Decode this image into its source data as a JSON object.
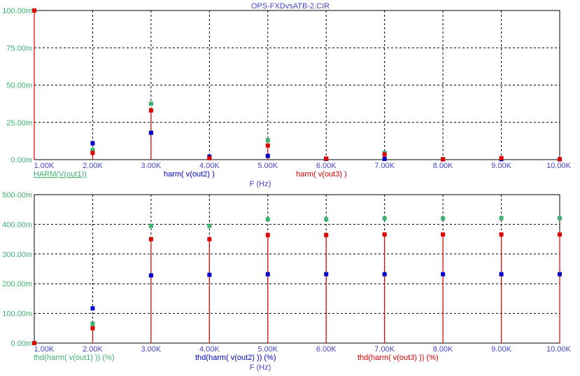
{
  "window": {
    "title": "OPS-FXDvsATB-2.CIR"
  },
  "chart_data": [
    {
      "type": "scatter",
      "x": [
        1,
        2,
        3,
        4,
        5,
        6,
        7,
        8,
        9,
        10
      ],
      "xlabel": "F (Hz)",
      "xticks": [
        "1.00K",
        "2.00K",
        "3.00K",
        "4.00K",
        "5.00K",
        "6.00K",
        "7.00K",
        "8.00K",
        "9.00K",
        "10.00K"
      ],
      "xlim": [
        1,
        10
      ],
      "ylim": [
        0,
        100
      ],
      "yticks": [
        "0.00m",
        "25.00m",
        "50.00m",
        "75.00m",
        "100.00m"
      ],
      "grid": true,
      "series": [
        {
          "name": "HARM(V(out1))",
          "color": "#3cb371",
          "stems": false,
          "values": [
            100,
            6.5,
            37.5,
            1.5,
            13,
            0.5,
            4.5,
            0.3,
            1,
            0.3
          ]
        },
        {
          "name": "harm(  v(out2) )",
          "color": "#0000cc",
          "stems": false,
          "values": [
            100,
            11,
            18,
            2,
            2.5,
            0.5,
            0.5,
            0.2,
            0.3,
            0.2
          ]
        },
        {
          "name": "harm(  v(out3) )",
          "color": "#dd0000",
          "stems": true,
          "values": [
            100,
            4.5,
            33,
            1,
            9.5,
            0.7,
            3.5,
            0.3,
            1,
            0.3
          ]
        }
      ]
    },
    {
      "type": "scatter",
      "x": [
        1,
        2,
        3,
        4,
        5,
        6,
        7,
        8,
        9,
        10
      ],
      "xlabel": "F (Hz)",
      "xticks": [
        "1.00K",
        "2.00K",
        "3.00K",
        "4.00K",
        "5.00K",
        "6.00K",
        "7.00K",
        "8.00K",
        "9.00K",
        "10.00K"
      ],
      "xlim": [
        1,
        10
      ],
      "ylim": [
        0,
        500
      ],
      "yticks": [
        "0.00m",
        "100.00m",
        "200.00m",
        "300.00m",
        "400.00m",
        "500.00m"
      ],
      "grid": true,
      "series": [
        {
          "name": "thd(harm(  v(out1) )) (%)",
          "color": "#3cb371",
          "stems": false,
          "values": [
            0,
            65,
            395,
            395,
            417,
            417,
            420,
            420,
            421,
            421
          ]
        },
        {
          "name": "thd(harm(  v(out2) )) (%)",
          "color": "#0000cc",
          "stems": false,
          "values": [
            0,
            117,
            228,
            230,
            232,
            232,
            232,
            232,
            232,
            232
          ]
        },
        {
          "name": "thd(harm(  v(out3) )) (%)",
          "color": "#dd0000",
          "stems": true,
          "values": [
            0,
            50,
            350,
            350,
            364,
            364,
            366,
            366,
            366,
            366
          ]
        }
      ]
    }
  ]
}
